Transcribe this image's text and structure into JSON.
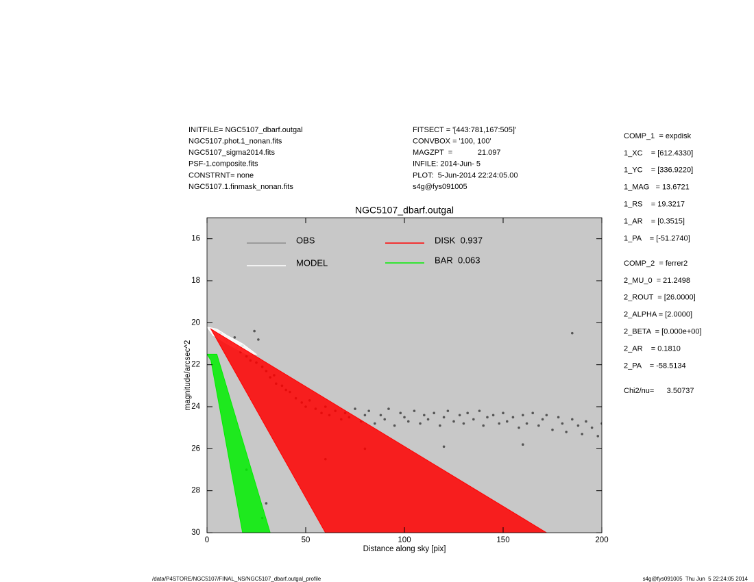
{
  "chart_data": {
    "type": "scatter",
    "title": "NGC5107_dbarf.outgal",
    "x_label": "Distance along sky [pix]",
    "y_label": "magnitude/arcsec^2",
    "xlim": [
      0,
      200
    ],
    "xticks": [
      0,
      50,
      100,
      150,
      200
    ],
    "ylim": [
      15,
      30
    ],
    "yticks": [
      16,
      18,
      20,
      22,
      24,
      26,
      28,
      30
    ],
    "y_inverted": true,
    "background": "#c8c8c8",
    "series": [
      {
        "name": "OBS",
        "color": "#8c8c8c",
        "kind": "points",
        "point_color": "#555555",
        "x": [
          3,
          5,
          7,
          9,
          10,
          12,
          14,
          15,
          17,
          18,
          20,
          22,
          24,
          25,
          26,
          28,
          30,
          32,
          34,
          35,
          38,
          40,
          42,
          45,
          48,
          50,
          52,
          55,
          58,
          60,
          62,
          65,
          68,
          70,
          72,
          75,
          78,
          80,
          82,
          85,
          88,
          90,
          92,
          95,
          98,
          100,
          102,
          105,
          108,
          110,
          112,
          115,
          118,
          120,
          122,
          125,
          128,
          130,
          132,
          135,
          138,
          140,
          142,
          145,
          148,
          150,
          152,
          155,
          158,
          160,
          162,
          165,
          168,
          170,
          172,
          175,
          178,
          180,
          182,
          185,
          188,
          190,
          192,
          195,
          198,
          200,
          185,
          20,
          30,
          160,
          120,
          28,
          60,
          80
        ],
        "values": [
          20.4,
          20.6,
          20.5,
          20.8,
          20.9,
          21.0,
          20.7,
          21.2,
          21.4,
          21.1,
          21.6,
          21.8,
          20.4,
          21.9,
          20.8,
          22.1,
          22.3,
          22.6,
          22.5,
          22.9,
          23.0,
          23.2,
          23.3,
          23.6,
          23.8,
          24.0,
          23.7,
          24.1,
          24.3,
          24.0,
          24.4,
          24.2,
          24.6,
          24.3,
          24.5,
          24.1,
          24.7,
          24.4,
          24.2,
          24.8,
          24.4,
          24.6,
          24.1,
          24.9,
          24.3,
          24.5,
          24.7,
          24.2,
          24.8,
          24.4,
          24.6,
          24.3,
          24.9,
          24.5,
          24.2,
          24.7,
          24.4,
          24.8,
          24.3,
          24.6,
          24.2,
          24.9,
          24.5,
          24.4,
          24.8,
          24.3,
          24.7,
          24.5,
          25.0,
          24.4,
          24.8,
          24.3,
          24.9,
          24.6,
          24.4,
          25.1,
          24.5,
          24.8,
          25.2,
          24.6,
          24.9,
          25.3,
          24.7,
          25.0,
          25.4,
          24.8,
          20.5,
          27.0,
          28.6,
          25.8,
          25.9,
          29.3,
          26.5,
          26.0
        ]
      },
      {
        "name": "MODEL",
        "color": "#ffffff",
        "kind": "region",
        "x": [
          0,
          5,
          10,
          18,
          25,
          20,
          10,
          3
        ],
        "values": [
          20.2,
          20.3,
          20.6,
          21.0,
          21.5,
          21.5,
          21.0,
          20.6
        ]
      },
      {
        "name": "DISK  0.937",
        "color": "#ff0000",
        "kind": "region",
        "x": [
          2,
          172,
          60
        ],
        "values": [
          20.3,
          30,
          30
        ]
      },
      {
        "name": "BAR  0.063",
        "color": "#00ee00",
        "kind": "region",
        "x": [
          0,
          5,
          32,
          18,
          2
        ],
        "values": [
          21.5,
          21.5,
          30,
          30,
          21.8
        ]
      }
    ],
    "info_left": [
      "INITFILE= NGC5107_dbarf.outgal",
      "NGC5107.phot.1_nonan.fits",
      "NGC5107_sigma2014.fits",
      "PSF-1.composite.fits",
      "CONSTRNT= none",
      "NGC5107.1.finmask_nonan.fits"
    ],
    "info_mid": [
      "FITSECT = '[443:781,167:505]'",
      "CONVBOX = '100, 100'",
      "MAGZPT  =            21.097",
      "INFILE: 2014-Jun- 5",
      "PLOT:  5-Jun-2014 22:24:05.00",
      "s4g@fys091005"
    ],
    "params_1": [
      "COMP_1  = expdisk",
      "1_XC    = [612.4330]",
      "1_YC    = [336.9220]",
      "1_MAG   = 13.6721",
      "1_RS    = 19.3217",
      "1_AR    = [0.3515]",
      "1_PA    = [-51.2740]"
    ],
    "params_2": [
      "COMP_2  = ferrer2",
      "2_MU_0  = 21.2498",
      "2_ROUT  = [26.0000]",
      "2_ALPHA = [2.0000]",
      "2_BETA  = [0.000e+00]",
      "2_AR    = 0.1810",
      "2_PA    = -58.5134"
    ],
    "chi2": "Chi2/nu=      3.50737",
    "footer_left": "/data/P4STORE/NGC5107/FINAL_NS/NGC5107_dbarf.outgal_profile",
    "footer_right": "s4g@fys091005  Thu Jun  5 22:24:05 2014"
  }
}
